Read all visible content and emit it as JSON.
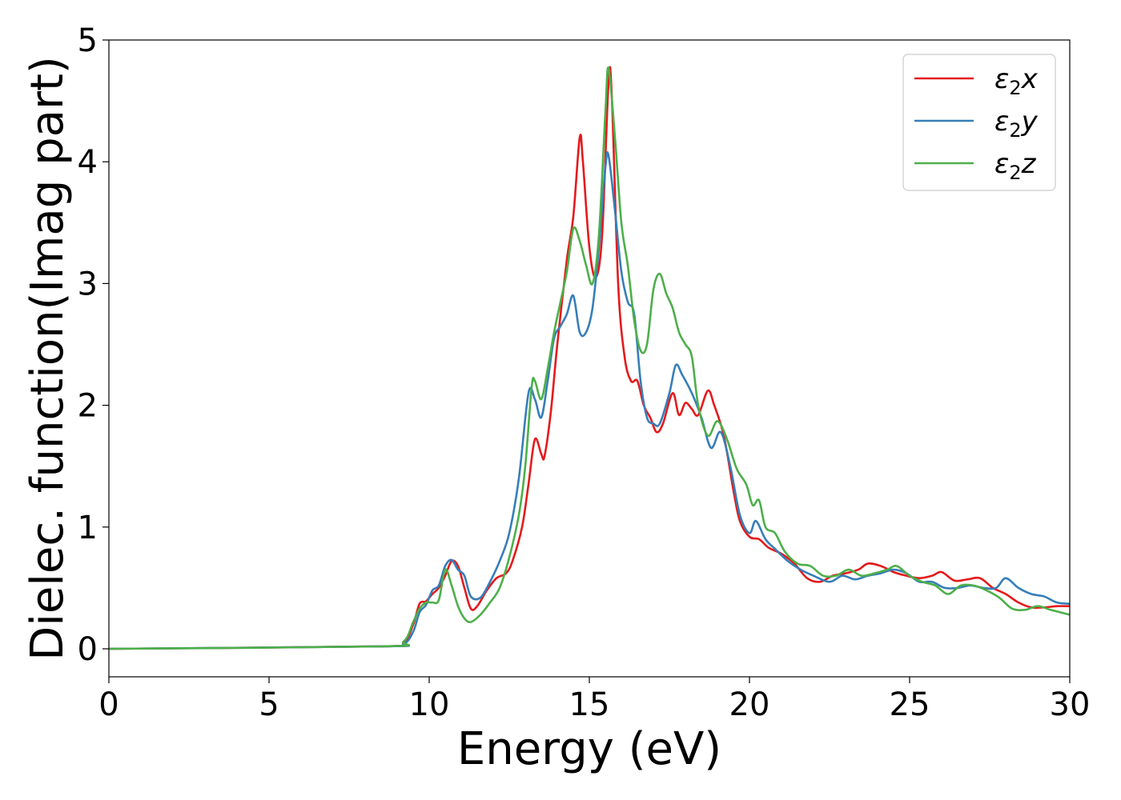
{
  "chart_data": {
    "type": "line",
    "xlabel": "Energy (eV)",
    "ylabel": "Dielec. function(Imag part)",
    "xlim": [
      0,
      30
    ],
    "ylim": [
      -0.23,
      5.0
    ],
    "x_ticks": [
      "0",
      "5",
      "10",
      "15",
      "20",
      "25",
      "30"
    ],
    "y_ticks": [
      "0",
      "1",
      "2",
      "3",
      "4",
      "5"
    ],
    "grid": false,
    "legend_position": "top-right",
    "series": [
      {
        "name": "ε2x",
        "legend_base": "ε",
        "legend_sub": "2",
        "legend_suffix": "x",
        "color": "#e41a1c",
        "points": [
          [
            0,
            0.0
          ],
          [
            8.5,
            0.02
          ],
          [
            9.2,
            0.05
          ],
          [
            9.5,
            0.2
          ],
          [
            9.7,
            0.37
          ],
          [
            9.9,
            0.39
          ],
          [
            10.1,
            0.45
          ],
          [
            10.3,
            0.5
          ],
          [
            10.5,
            0.6
          ],
          [
            10.7,
            0.72
          ],
          [
            10.9,
            0.68
          ],
          [
            11.1,
            0.5
          ],
          [
            11.3,
            0.33
          ],
          [
            11.5,
            0.35
          ],
          [
            11.8,
            0.48
          ],
          [
            12.1,
            0.58
          ],
          [
            12.4,
            0.62
          ],
          [
            12.6,
            0.72
          ],
          [
            12.9,
            1.0
          ],
          [
            13.1,
            1.35
          ],
          [
            13.3,
            1.72
          ],
          [
            13.5,
            1.6
          ],
          [
            13.6,
            1.58
          ],
          [
            13.8,
            1.95
          ],
          [
            14.0,
            2.5
          ],
          [
            14.3,
            3.2
          ],
          [
            14.5,
            3.55
          ],
          [
            14.7,
            4.2
          ],
          [
            14.8,
            4.0
          ],
          [
            15.0,
            3.3
          ],
          [
            15.2,
            3.05
          ],
          [
            15.4,
            3.4
          ],
          [
            15.6,
            4.65
          ],
          [
            15.7,
            4.55
          ],
          [
            15.9,
            3.0
          ],
          [
            16.1,
            2.4
          ],
          [
            16.3,
            2.2
          ],
          [
            16.5,
            2.2
          ],
          [
            16.7,
            2.0
          ],
          [
            16.9,
            1.9
          ],
          [
            17.1,
            1.78
          ],
          [
            17.3,
            1.85
          ],
          [
            17.6,
            2.1
          ],
          [
            17.8,
            1.92
          ],
          [
            18.0,
            2.02
          ],
          [
            18.2,
            1.97
          ],
          [
            18.4,
            1.92
          ],
          [
            18.7,
            2.12
          ],
          [
            18.9,
            2.0
          ],
          [
            19.2,
            1.75
          ],
          [
            19.5,
            1.3
          ],
          [
            19.7,
            1.05
          ],
          [
            20.0,
            0.92
          ],
          [
            20.3,
            0.9
          ],
          [
            20.6,
            0.83
          ],
          [
            21.0,
            0.78
          ],
          [
            21.4,
            0.7
          ],
          [
            21.8,
            0.58
          ],
          [
            22.2,
            0.55
          ],
          [
            22.6,
            0.6
          ],
          [
            23.0,
            0.62
          ],
          [
            23.4,
            0.65
          ],
          [
            23.7,
            0.7
          ],
          [
            24.1,
            0.68
          ],
          [
            24.5,
            0.63
          ],
          [
            24.9,
            0.6
          ],
          [
            25.3,
            0.58
          ],
          [
            25.7,
            0.6
          ],
          [
            26.0,
            0.63
          ],
          [
            26.4,
            0.56
          ],
          [
            26.8,
            0.57
          ],
          [
            27.2,
            0.58
          ],
          [
            27.6,
            0.5
          ],
          [
            28.0,
            0.45
          ],
          [
            28.4,
            0.38
          ],
          [
            28.8,
            0.34
          ],
          [
            29.2,
            0.34
          ],
          [
            29.6,
            0.35
          ],
          [
            30.0,
            0.35
          ]
        ]
      },
      {
        "name": "ε2y",
        "legend_base": "ε",
        "legend_sub": "2",
        "legend_suffix": "y",
        "color": "#377eb8",
        "points": [
          [
            0,
            0.0
          ],
          [
            8.5,
            0.02
          ],
          [
            9.2,
            0.04
          ],
          [
            9.5,
            0.14
          ],
          [
            9.7,
            0.3
          ],
          [
            9.9,
            0.36
          ],
          [
            10.1,
            0.48
          ],
          [
            10.3,
            0.52
          ],
          [
            10.5,
            0.68
          ],
          [
            10.7,
            0.73
          ],
          [
            10.9,
            0.65
          ],
          [
            11.1,
            0.6
          ],
          [
            11.3,
            0.43
          ],
          [
            11.6,
            0.42
          ],
          [
            11.9,
            0.55
          ],
          [
            12.2,
            0.72
          ],
          [
            12.5,
            0.95
          ],
          [
            12.8,
            1.4
          ],
          [
            13.1,
            2.1
          ],
          [
            13.3,
            2.05
          ],
          [
            13.5,
            1.9
          ],
          [
            13.7,
            2.2
          ],
          [
            13.9,
            2.55
          ],
          [
            14.1,
            2.65
          ],
          [
            14.3,
            2.75
          ],
          [
            14.5,
            2.9
          ],
          [
            14.7,
            2.6
          ],
          [
            14.9,
            2.6
          ],
          [
            15.1,
            2.8
          ],
          [
            15.3,
            3.3
          ],
          [
            15.5,
            3.95
          ],
          [
            15.6,
            4.05
          ],
          [
            15.8,
            3.6
          ],
          [
            16.0,
            3.1
          ],
          [
            16.2,
            2.85
          ],
          [
            16.4,
            2.75
          ],
          [
            16.6,
            2.2
          ],
          [
            16.8,
            1.9
          ],
          [
            17.0,
            1.85
          ],
          [
            17.2,
            1.85
          ],
          [
            17.5,
            2.1
          ],
          [
            17.7,
            2.33
          ],
          [
            17.9,
            2.25
          ],
          [
            18.2,
            2.1
          ],
          [
            18.5,
            1.9
          ],
          [
            18.8,
            1.65
          ],
          [
            19.1,
            1.78
          ],
          [
            19.4,
            1.5
          ],
          [
            19.7,
            1.1
          ],
          [
            20.0,
            0.95
          ],
          [
            20.2,
            1.05
          ],
          [
            20.5,
            0.9
          ],
          [
            20.8,
            0.82
          ],
          [
            21.2,
            0.72
          ],
          [
            21.6,
            0.65
          ],
          [
            22.0,
            0.6
          ],
          [
            22.5,
            0.55
          ],
          [
            22.9,
            0.6
          ],
          [
            23.3,
            0.57
          ],
          [
            23.7,
            0.6
          ],
          [
            24.1,
            0.62
          ],
          [
            24.5,
            0.65
          ],
          [
            24.9,
            0.62
          ],
          [
            25.3,
            0.55
          ],
          [
            25.7,
            0.55
          ],
          [
            26.1,
            0.5
          ],
          [
            26.5,
            0.5
          ],
          [
            26.9,
            0.52
          ],
          [
            27.3,
            0.5
          ],
          [
            27.7,
            0.5
          ],
          [
            28.0,
            0.58
          ],
          [
            28.4,
            0.5
          ],
          [
            28.8,
            0.45
          ],
          [
            29.2,
            0.43
          ],
          [
            29.6,
            0.38
          ],
          [
            30.0,
            0.37
          ]
        ]
      },
      {
        "name": "ε2z",
        "legend_base": "ε",
        "legend_sub": "2",
        "legend_suffix": "z",
        "color": "#4daf4a",
        "points": [
          [
            0,
            0.0
          ],
          [
            8.5,
            0.02
          ],
          [
            9.2,
            0.06
          ],
          [
            9.5,
            0.22
          ],
          [
            9.7,
            0.33
          ],
          [
            9.9,
            0.38
          ],
          [
            10.1,
            0.38
          ],
          [
            10.3,
            0.4
          ],
          [
            10.5,
            0.65
          ],
          [
            10.7,
            0.52
          ],
          [
            10.9,
            0.35
          ],
          [
            11.1,
            0.25
          ],
          [
            11.3,
            0.22
          ],
          [
            11.6,
            0.28
          ],
          [
            11.9,
            0.38
          ],
          [
            12.2,
            0.5
          ],
          [
            12.5,
            0.75
          ],
          [
            12.8,
            1.1
          ],
          [
            13.0,
            1.5
          ],
          [
            13.2,
            2.15
          ],
          [
            13.3,
            2.2
          ],
          [
            13.5,
            2.05
          ],
          [
            13.7,
            2.3
          ],
          [
            13.9,
            2.6
          ],
          [
            14.1,
            2.85
          ],
          [
            14.3,
            3.1
          ],
          [
            14.5,
            3.45
          ],
          [
            14.7,
            3.35
          ],
          [
            14.9,
            3.15
          ],
          [
            15.1,
            3.0
          ],
          [
            15.3,
            3.4
          ],
          [
            15.5,
            4.4
          ],
          [
            15.6,
            4.77
          ],
          [
            15.8,
            4.2
          ],
          [
            16.0,
            3.5
          ],
          [
            16.2,
            3.15
          ],
          [
            16.4,
            2.7
          ],
          [
            16.6,
            2.45
          ],
          [
            16.8,
            2.5
          ],
          [
            17.0,
            2.95
          ],
          [
            17.2,
            3.08
          ],
          [
            17.4,
            2.92
          ],
          [
            17.6,
            2.8
          ],
          [
            17.8,
            2.6
          ],
          [
            18.0,
            2.5
          ],
          [
            18.2,
            2.4
          ],
          [
            18.4,
            2.0
          ],
          [
            18.7,
            1.75
          ],
          [
            19.0,
            1.87
          ],
          [
            19.3,
            1.72
          ],
          [
            19.6,
            1.48
          ],
          [
            19.9,
            1.35
          ],
          [
            20.1,
            1.18
          ],
          [
            20.3,
            1.22
          ],
          [
            20.5,
            1.0
          ],
          [
            20.8,
            0.95
          ],
          [
            21.1,
            0.8
          ],
          [
            21.5,
            0.7
          ],
          [
            21.9,
            0.68
          ],
          [
            22.3,
            0.6
          ],
          [
            22.7,
            0.6
          ],
          [
            23.1,
            0.65
          ],
          [
            23.5,
            0.6
          ],
          [
            23.9,
            0.62
          ],
          [
            24.3,
            0.65
          ],
          [
            24.6,
            0.68
          ],
          [
            25.0,
            0.6
          ],
          [
            25.4,
            0.55
          ],
          [
            25.8,
            0.52
          ],
          [
            26.2,
            0.45
          ],
          [
            26.6,
            0.52
          ],
          [
            27.0,
            0.52
          ],
          [
            27.4,
            0.48
          ],
          [
            27.8,
            0.42
          ],
          [
            28.2,
            0.33
          ],
          [
            28.6,
            0.32
          ],
          [
            29.0,
            0.35
          ],
          [
            29.4,
            0.32
          ],
          [
            29.7,
            0.3
          ],
          [
            30.0,
            0.28
          ]
        ]
      }
    ]
  }
}
